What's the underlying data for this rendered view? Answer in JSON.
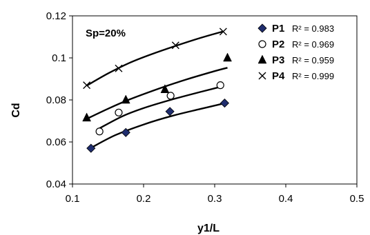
{
  "chart_data": {
    "type": "scatter",
    "annotation": "Sp=20%",
    "xlabel": "y1/L",
    "ylabel": "Cd",
    "xlim": [
      0.1,
      0.5
    ],
    "ylim": [
      0.04,
      0.12
    ],
    "xticks": [
      "0.1",
      "0.2",
      "0.3",
      "0.4",
      "0.5"
    ],
    "yticks": [
      "0.04",
      "0.06",
      "0.08",
      "0.1",
      "0.12"
    ],
    "grid": false,
    "legend_position": "top-right",
    "series": [
      {
        "name": "P1",
        "r2": "R² = 0.983",
        "marker": "diamond",
        "color": "#1f2d6e",
        "x": [
          0.126,
          0.175,
          0.237,
          0.314
        ],
        "y": [
          0.057,
          0.0645,
          0.0745,
          0.0785
        ],
        "trend": [
          [
            0.126,
            0.0572
          ],
          [
            0.16,
            0.0632
          ],
          [
            0.2,
            0.0683
          ],
          [
            0.24,
            0.0724
          ],
          [
            0.28,
            0.0757
          ],
          [
            0.315,
            0.0785
          ]
        ]
      },
      {
        "name": "P2",
        "r2": "R² = 0.969",
        "marker": "circle",
        "color": "#000000",
        "x": [
          0.138,
          0.165,
          0.238,
          0.308
        ],
        "y": [
          0.065,
          0.074,
          0.082,
          0.087
        ],
        "trend": [
          [
            0.138,
            0.0665
          ],
          [
            0.17,
            0.0722
          ],
          [
            0.2,
            0.0761
          ],
          [
            0.24,
            0.0802
          ],
          [
            0.28,
            0.0838
          ],
          [
            0.308,
            0.0862
          ]
        ]
      },
      {
        "name": "P3",
        "r2": "R² = 0.959",
        "marker": "triangle",
        "color": "#000000",
        "x": [
          0.12,
          0.175,
          0.23,
          0.318
        ],
        "y": [
          0.0715,
          0.08,
          0.085,
          0.1
        ],
        "trend": [
          [
            0.12,
            0.071
          ],
          [
            0.15,
            0.0758
          ],
          [
            0.18,
            0.0802
          ],
          [
            0.22,
            0.0852
          ],
          [
            0.26,
            0.0897
          ],
          [
            0.3,
            0.0937
          ],
          [
            0.318,
            0.0953
          ]
        ]
      },
      {
        "name": "P4",
        "r2": "R² = 0.999",
        "marker": "x",
        "color": "#000000",
        "x": [
          0.12,
          0.165,
          0.245,
          0.312
        ],
        "y": [
          0.087,
          0.095,
          0.106,
          0.1125
        ],
        "trend": [
          [
            0.12,
            0.0868
          ],
          [
            0.15,
            0.0926
          ],
          [
            0.18,
            0.0976
          ],
          [
            0.21,
            0.1016
          ],
          [
            0.245,
            0.1057
          ],
          [
            0.28,
            0.1095
          ],
          [
            0.312,
            0.1126
          ]
        ]
      }
    ]
  }
}
